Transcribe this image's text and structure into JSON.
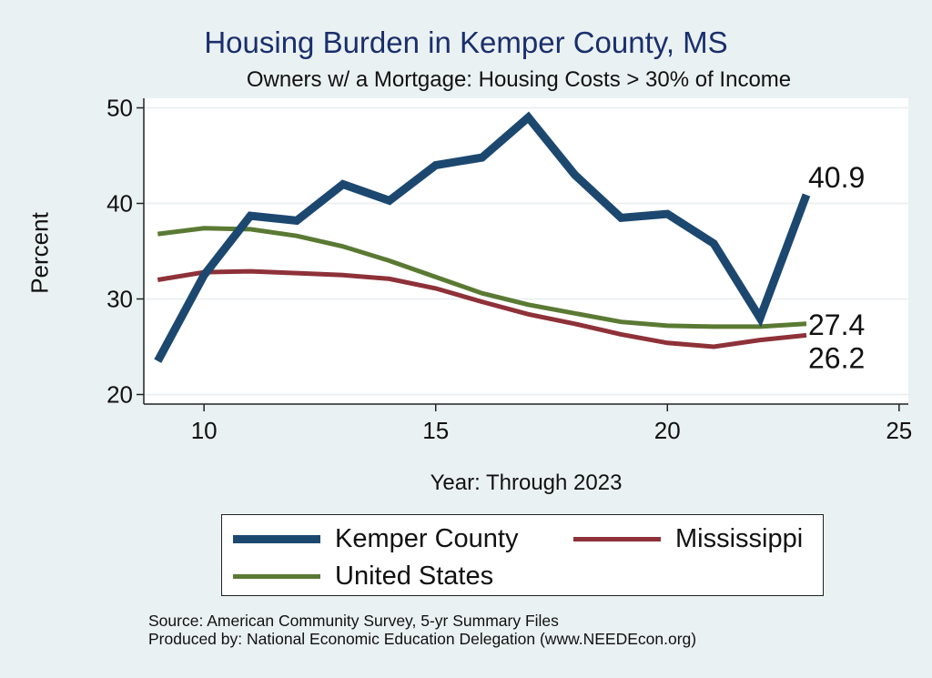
{
  "chart_data": {
    "type": "line",
    "title": "Housing Burden in Kemper County, MS",
    "subtitle": "Owners w/ a Mortgage: Housing Costs > 30% of Income",
    "xlabel": "Year: Through 2023",
    "ylabel": "Percent",
    "xlim": [
      8.7,
      25.2
    ],
    "ylim": [
      19,
      51
    ],
    "xticks": [
      10,
      15,
      20,
      25
    ],
    "yticks": [
      20,
      30,
      40,
      50
    ],
    "grid": true,
    "x": [
      9,
      10,
      11,
      12,
      13,
      14,
      15,
      16,
      17,
      18,
      19,
      20,
      21,
      22,
      23
    ],
    "series": [
      {
        "name": "Kemper County",
        "color": "#1c4870",
        "width": 9,
        "values": [
          23.5,
          32.5,
          38.7,
          38.2,
          42.0,
          40.3,
          44.0,
          44.8,
          49.0,
          43.0,
          38.5,
          38.9,
          35.8,
          28.0,
          40.9
        ],
        "end_label": "40.9"
      },
      {
        "name": "Mississippi",
        "color": "#8e3138",
        "width": 5,
        "values": [
          32.0,
          32.8,
          32.9,
          32.7,
          32.5,
          32.1,
          31.1,
          29.7,
          28.4,
          27.4,
          26.3,
          25.4,
          25.0,
          25.7,
          26.2
        ],
        "end_label": "26.2"
      },
      {
        "name": "United States",
        "color": "#5a7a33",
        "width": 5,
        "values": [
          36.8,
          37.4,
          37.3,
          36.6,
          35.5,
          34.0,
          32.3,
          30.6,
          29.4,
          28.5,
          27.6,
          27.2,
          27.1,
          27.1,
          27.4
        ],
        "end_label": "27.4"
      }
    ],
    "legend": {
      "position": "bottom",
      "entries": [
        "Kemper County",
        "Mississippi",
        "United States"
      ]
    }
  },
  "source": {
    "line1": "Source: American Community Survey, 5-yr Summary Files",
    "line2": "Produced by: National Economic Education Delegation (www.NEEDEcon.org)"
  }
}
